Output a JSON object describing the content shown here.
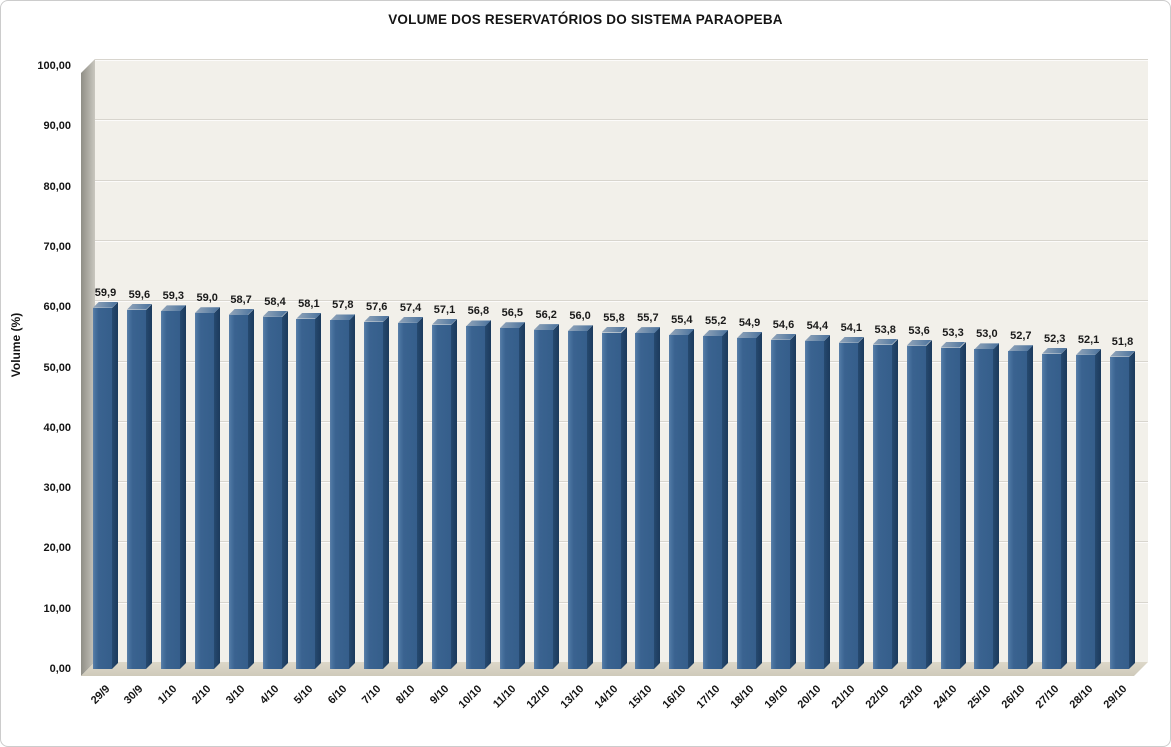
{
  "chart_data": {
    "type": "bar",
    "title": "VOLUME DOS RESERVATÓRIOS DO SISTEMA PARAOPEBA",
    "xlabel": "",
    "ylabel": "Volume (%)",
    "ylim": [
      0,
      100
    ],
    "ytick_interval": 10,
    "ytick_labels_bottom_up": [
      "0,00",
      "10,00",
      "20,00",
      "30,00",
      "40,00",
      "50,00",
      "60,00",
      "70,00",
      "80,00",
      "90,00",
      "100,00"
    ],
    "grid": true,
    "legend": null,
    "categories": [
      "29/9",
      "30/9",
      "1/10",
      "2/10",
      "3/10",
      "4/10",
      "5/10",
      "6/10",
      "7/10",
      "8/10",
      "9/10",
      "10/10",
      "11/10",
      "12/10",
      "13/10",
      "14/10",
      "15/10",
      "16/10",
      "17/10",
      "18/10",
      "19/10",
      "20/10",
      "21/10",
      "22/10",
      "23/10",
      "24/10",
      "25/10",
      "26/10",
      "27/10",
      "28/10",
      "29/10"
    ],
    "values": [
      59.9,
      59.6,
      59.3,
      59.0,
      58.7,
      58.4,
      58.1,
      57.8,
      57.6,
      57.4,
      57.1,
      56.8,
      56.5,
      56.2,
      56.0,
      55.8,
      55.7,
      55.4,
      55.2,
      54.9,
      54.6,
      54.4,
      54.1,
      53.8,
      53.6,
      53.3,
      53.0,
      52.7,
      52.3,
      52.1,
      51.8
    ],
    "value_labels": [
      "59,9",
      "59,6",
      "59,3",
      "59,0",
      "58,7",
      "58,4",
      "58,1",
      "57,8",
      "57,6",
      "57,4",
      "57,1",
      "56,8",
      "56,5",
      "56,2",
      "56,0",
      "55,8",
      "55,7",
      "55,4",
      "55,2",
      "54,9",
      "54,6",
      "54,4",
      "54,1",
      "53,8",
      "53,6",
      "53,3",
      "53,0",
      "52,7",
      "52,3",
      "52,1",
      "51,8"
    ],
    "colors": {
      "bar_face": "#3a6390",
      "bar_face_highlight": "#5c80a8",
      "bar_side_dark": "#1b3a5c",
      "bar_top_light": "#93a6ba",
      "plot_background": "#f2f0ea",
      "wall_gray": "#8f8e86",
      "floor_tan": "#d5d0c1",
      "gridline": "#d8d5ce",
      "text": "#141414"
    }
  }
}
